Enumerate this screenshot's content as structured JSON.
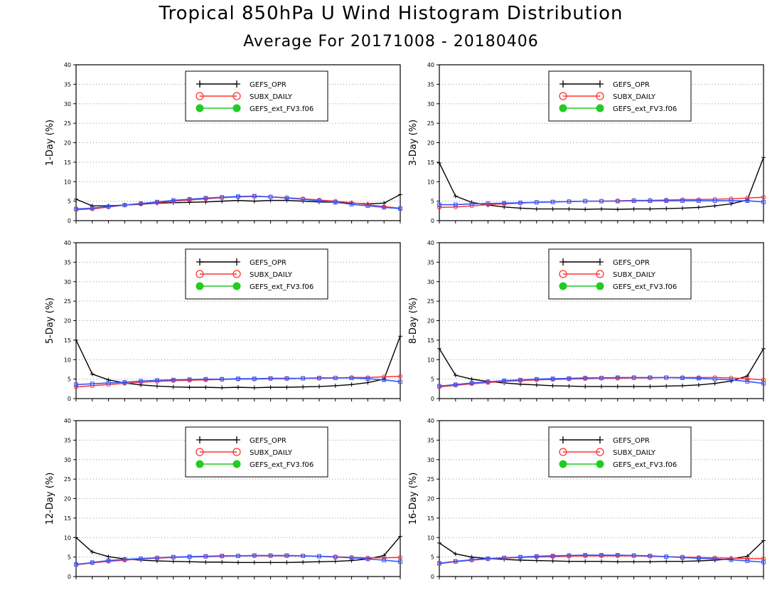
{
  "figure": {
    "title": "Tropical 850hPa U Wind Histogram Distribution",
    "subtitle": "Average For 20171008 - 20180406"
  },
  "legend_entries": [
    "GEFS_OPR",
    "SUBX_DAILY",
    "GEFS_ext_FV3.f06"
  ],
  "colors": {
    "GEFS_OPR": "#000000",
    "SUBX_DAILY": "#ff3333",
    "GEFS_ext_FV3.f06": "#22cc22",
    "overlay": "#3355ff",
    "grid": "#999999"
  },
  "chart_data": [
    {
      "type": "line",
      "ylabel": "1-Day (%)",
      "ylim": [
        0,
        40
      ],
      "yticks": [
        0,
        5,
        10,
        15,
        20,
        25,
        30,
        35,
        40
      ],
      "x": [
        1,
        2,
        3,
        4,
        5,
        6,
        7,
        8,
        9,
        10,
        11,
        12,
        13,
        14,
        15,
        16,
        17,
        18,
        19,
        20,
        21
      ],
      "grid": true,
      "legend_position": "top-center",
      "series": [
        {
          "name": "GEFS_OPR",
          "values": [
            5.5,
            3.8,
            3.8,
            4.0,
            4.2,
            4.5,
            4.6,
            4.7,
            4.8,
            5.0,
            5.2,
            5.0,
            5.2,
            5.2,
            5.0,
            4.8,
            4.7,
            4.5,
            4.3,
            4.5,
            6.7
          ]
        },
        {
          "name": "SUBX_DAILY",
          "values": [
            2.8,
            3.0,
            3.5,
            4.0,
            4.3,
            4.6,
            5.0,
            5.3,
            5.6,
            5.9,
            6.1,
            6.2,
            6.1,
            5.9,
            5.6,
            5.3,
            5.0,
            4.6,
            4.1,
            3.6,
            3.2
          ]
        },
        {
          "name": "GEFS_ext_FV3.f06",
          "values": [
            3.0,
            3.2,
            3.6,
            4.0,
            4.4,
            4.8,
            5.2,
            5.5,
            5.8,
            6.0,
            6.2,
            6.3,
            6.1,
            5.8,
            5.5,
            5.1,
            4.7,
            4.2,
            3.8,
            3.4,
            3.1
          ]
        }
      ]
    },
    {
      "type": "line",
      "ylabel": "3-Day (%)",
      "ylim": [
        0,
        40
      ],
      "yticks": [
        0,
        5,
        10,
        15,
        20,
        25,
        30,
        35,
        40
      ],
      "x": [
        1,
        2,
        3,
        4,
        5,
        6,
        7,
        8,
        9,
        10,
        11,
        12,
        13,
        14,
        15,
        16,
        17,
        18,
        19,
        20,
        21
      ],
      "grid": true,
      "legend_position": "top-center",
      "series": [
        {
          "name": "GEFS_OPR",
          "values": [
            14.8,
            6.3,
            4.7,
            4.0,
            3.5,
            3.2,
            3.0,
            3.0,
            3.0,
            2.9,
            3.0,
            2.9,
            3.0,
            3.0,
            3.1,
            3.2,
            3.4,
            3.8,
            4.3,
            5.3,
            16.2
          ]
        },
        {
          "name": "SUBX_DAILY",
          "values": [
            3.4,
            3.5,
            3.8,
            4.1,
            4.3,
            4.5,
            4.7,
            4.8,
            4.9,
            5.0,
            5.0,
            5.1,
            5.2,
            5.2,
            5.3,
            5.4,
            5.4,
            5.5,
            5.6,
            5.8,
            6.0
          ]
        },
        {
          "name": "GEFS_ext_FV3.f06",
          "values": [
            4.1,
            4.1,
            4.3,
            4.4,
            4.5,
            4.6,
            4.7,
            4.8,
            4.9,
            5.0,
            5.0,
            5.0,
            5.1,
            5.1,
            5.1,
            5.1,
            5.1,
            5.1,
            5.1,
            5.1,
            4.8
          ]
        }
      ]
    },
    {
      "type": "line",
      "ylabel": "5-Day (%)",
      "ylim": [
        0,
        40
      ],
      "yticks": [
        0,
        5,
        10,
        15,
        20,
        25,
        30,
        35,
        40
      ],
      "x": [
        1,
        2,
        3,
        4,
        5,
        6,
        7,
        8,
        9,
        10,
        11,
        12,
        13,
        14,
        15,
        16,
        17,
        18,
        19,
        20,
        21
      ],
      "grid": true,
      "legend_position": "top-center",
      "series": [
        {
          "name": "GEFS_OPR",
          "values": [
            15.0,
            6.3,
            4.8,
            4.0,
            3.5,
            3.2,
            3.0,
            2.9,
            2.9,
            2.8,
            2.9,
            2.8,
            2.9,
            2.9,
            3.0,
            3.1,
            3.3,
            3.6,
            4.1,
            5.0,
            16.0
          ]
        },
        {
          "name": "SUBX_DAILY",
          "values": [
            3.0,
            3.3,
            3.6,
            3.9,
            4.2,
            4.4,
            4.6,
            4.7,
            4.8,
            4.9,
            5.0,
            5.0,
            5.1,
            5.1,
            5.2,
            5.2,
            5.3,
            5.4,
            5.4,
            5.6,
            5.7
          ]
        },
        {
          "name": "GEFS_ext_FV3.f06",
          "values": [
            3.6,
            3.8,
            4.0,
            4.2,
            4.5,
            4.7,
            4.8,
            4.9,
            5.0,
            5.0,
            5.1,
            5.1,
            5.2,
            5.2,
            5.2,
            5.3,
            5.3,
            5.3,
            5.1,
            4.8,
            4.3
          ]
        }
      ]
    },
    {
      "type": "line",
      "ylabel": "8-Day (%)",
      "ylim": [
        0,
        40
      ],
      "yticks": [
        0,
        5,
        10,
        15,
        20,
        25,
        30,
        35,
        40
      ],
      "x": [
        1,
        2,
        3,
        4,
        5,
        6,
        7,
        8,
        9,
        10,
        11,
        12,
        13,
        14,
        15,
        16,
        17,
        18,
        19,
        20,
        21
      ],
      "grid": true,
      "legend_position": "top-center",
      "series": [
        {
          "name": "GEFS_OPR",
          "values": [
            12.8,
            6.0,
            5.0,
            4.4,
            4.0,
            3.7,
            3.5,
            3.3,
            3.2,
            3.1,
            3.1,
            3.1,
            3.1,
            3.1,
            3.2,
            3.3,
            3.5,
            3.9,
            4.5,
            5.8,
            12.8
          ]
        },
        {
          "name": "SUBX_DAILY",
          "values": [
            3.0,
            3.4,
            3.8,
            4.1,
            4.4,
            4.6,
            4.8,
            4.9,
            5.0,
            5.1,
            5.2,
            5.2,
            5.3,
            5.3,
            5.4,
            5.4,
            5.4,
            5.4,
            5.3,
            5.1,
            4.8
          ]
        },
        {
          "name": "GEFS_ext_FV3.f06",
          "values": [
            3.2,
            3.6,
            4.0,
            4.3,
            4.6,
            4.8,
            5.0,
            5.1,
            5.2,
            5.3,
            5.3,
            5.4,
            5.4,
            5.4,
            5.4,
            5.3,
            5.2,
            5.0,
            4.8,
            4.4,
            3.9
          ]
        }
      ]
    },
    {
      "type": "line",
      "ylabel": "12-Day (%)",
      "ylim": [
        0,
        40
      ],
      "yticks": [
        0,
        5,
        10,
        15,
        20,
        25,
        30,
        35,
        40
      ],
      "x": [
        1,
        2,
        3,
        4,
        5,
        6,
        7,
        8,
        9,
        10,
        11,
        12,
        13,
        14,
        15,
        16,
        17,
        18,
        19,
        20,
        21
      ],
      "grid": true,
      "legend_position": "top-center",
      "series": [
        {
          "name": "GEFS_OPR",
          "values": [
            10.0,
            6.3,
            5.1,
            4.5,
            4.2,
            4.0,
            3.9,
            3.8,
            3.7,
            3.7,
            3.6,
            3.6,
            3.6,
            3.6,
            3.7,
            3.8,
            3.9,
            4.1,
            4.5,
            5.4,
            10.3
          ]
        },
        {
          "name": "SUBX_DAILY",
          "values": [
            3.0,
            3.5,
            3.9,
            4.2,
            4.5,
            4.7,
            4.9,
            5.0,
            5.1,
            5.2,
            5.3,
            5.3,
            5.3,
            5.3,
            5.3,
            5.2,
            5.1,
            4.9,
            4.8,
            4.8,
            4.9
          ]
        },
        {
          "name": "GEFS_ext_FV3.f06",
          "values": [
            3.1,
            3.6,
            4.1,
            4.4,
            4.6,
            4.8,
            5.0,
            5.1,
            5.2,
            5.3,
            5.3,
            5.4,
            5.4,
            5.4,
            5.3,
            5.2,
            5.0,
            4.8,
            4.5,
            4.2,
            3.8
          ]
        }
      ]
    },
    {
      "type": "line",
      "ylabel": "16-Day (%)",
      "ylim": [
        0,
        40
      ],
      "yticks": [
        0,
        5,
        10,
        15,
        20,
        25,
        30,
        35,
        40
      ],
      "x": [
        1,
        2,
        3,
        4,
        5,
        6,
        7,
        8,
        9,
        10,
        11,
        12,
        13,
        14,
        15,
        16,
        17,
        18,
        19,
        20,
        21
      ],
      "grid": true,
      "legend_position": "top-center",
      "series": [
        {
          "name": "GEFS_OPR",
          "values": [
            8.6,
            5.8,
            5.0,
            4.6,
            4.4,
            4.2,
            4.1,
            4.0,
            3.9,
            3.9,
            3.9,
            3.8,
            3.8,
            3.8,
            3.9,
            3.9,
            4.0,
            4.2,
            4.5,
            5.2,
            9.2
          ]
        },
        {
          "name": "SUBX_DAILY",
          "values": [
            3.3,
            3.8,
            4.2,
            4.5,
            4.7,
            4.9,
            5.0,
            5.1,
            5.2,
            5.3,
            5.3,
            5.3,
            5.3,
            5.2,
            5.1,
            5.0,
            4.9,
            4.8,
            4.7,
            4.6,
            4.6
          ]
        },
        {
          "name": "GEFS_ext_FV3.f06",
          "values": [
            3.4,
            3.9,
            4.3,
            4.6,
            4.8,
            5.0,
            5.2,
            5.3,
            5.4,
            5.5,
            5.5,
            5.5,
            5.4,
            5.3,
            5.1,
            4.9,
            4.7,
            4.5,
            4.3,
            4.0,
            3.7
          ]
        }
      ]
    }
  ]
}
